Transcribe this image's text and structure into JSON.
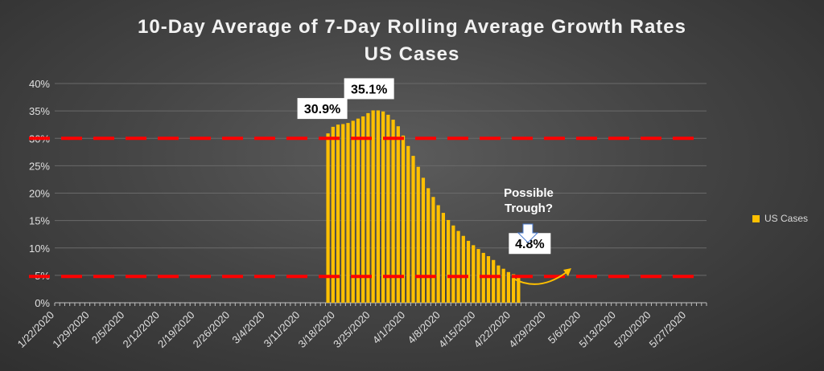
{
  "chart_data": {
    "type": "bar",
    "title": "10-Day Average of 7-Day Rolling Average Growth Rates",
    "subtitle": "US Cases",
    "ylim": [
      0,
      40
    ],
    "y_ticks": [
      "0%",
      "5%",
      "10%",
      "15%",
      "20%",
      "25%",
      "30%",
      "35%",
      "40%"
    ],
    "x_tick_labels": [
      "1/22/2020",
      "1/29/2020",
      "2/5/2020",
      "2/12/2020",
      "2/19/2020",
      "2/26/2020",
      "3/4/2020",
      "3/11/2020",
      "3/18/2020",
      "3/25/2020",
      "4/1/2020",
      "4/8/2020",
      "4/15/2020",
      "4/22/2020",
      "4/29/2020",
      "5/6/2020",
      "5/13/2020",
      "5/20/2020",
      "5/27/2020"
    ],
    "start_date": "1/22/2020",
    "total_days": 130,
    "series": [
      {
        "name": "US Cases",
        "color": "#FFC000",
        "first_date": "3/16/2020",
        "values": [
          30.9,
          32.1,
          32.5,
          32.6,
          32.8,
          33.2,
          33.6,
          34.0,
          34.6,
          35.1,
          35.1,
          34.9,
          34.3,
          33.4,
          32.2,
          30.5,
          28.6,
          26.8,
          24.8,
          22.8,
          20.9,
          19.3,
          17.8,
          16.4,
          15.1,
          14.1,
          13.1,
          12.2,
          11.3,
          10.5,
          9.8,
          9.1,
          8.5,
          7.8,
          6.8,
          6.2,
          5.6,
          5.2,
          4.8
        ]
      }
    ],
    "reference_lines": [
      {
        "value": 30,
        "color": "#FF0000",
        "style": "dashed"
      },
      {
        "value": 4.8,
        "color": "#FF0000",
        "style": "dashed"
      }
    ],
    "annotations": [
      {
        "text": "30.9%",
        "date": "3/16/2020",
        "value": 30.9
      },
      {
        "text": "35.1%",
        "date": "3/25/2020",
        "value": 35.1
      },
      {
        "text": "4.8%",
        "date": "4/23/2020",
        "value": 4.8
      }
    ],
    "trough_label": "Possible\nTrough?",
    "grid": true,
    "legend_position": "right"
  }
}
